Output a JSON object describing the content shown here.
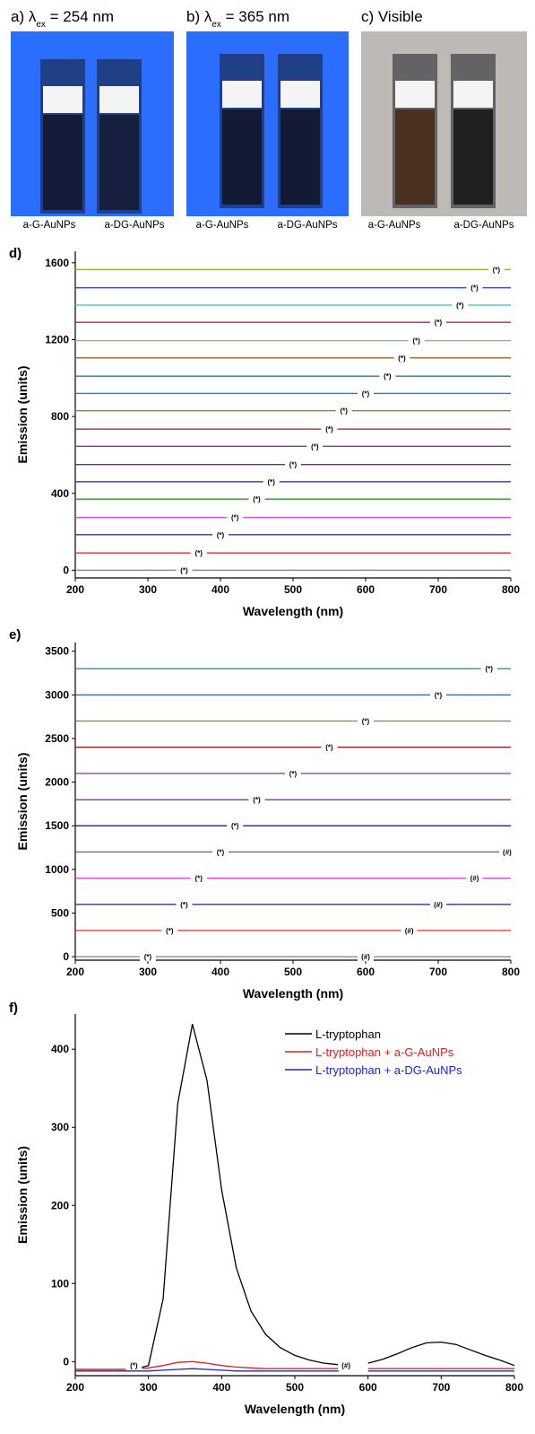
{
  "photos": [
    {
      "label": [
        "a) λ",
        "ex",
        " = 254 nm"
      ],
      "samples": [
        "a-G-AuNPs",
        "a-DG-AuNPs"
      ]
    },
    {
      "label": [
        "b) λ",
        "ex",
        " = 365 nm"
      ],
      "samples": [
        "a-G-AuNPs",
        "a-DG-AuNPs"
      ]
    },
    {
      "label": [
        "c) Visible"
      ],
      "samples": [
        "a-G-AuNPs",
        "a-DG-AuNPs"
      ]
    }
  ],
  "chart_data": [
    {
      "type": "line",
      "panel": "d)",
      "x_label": "Wavelength (nm)",
      "y_label": "Emission (units)",
      "xlim": [
        200,
        800
      ],
      "xticks": [
        200,
        300,
        400,
        500,
        600,
        700,
        800
      ],
      "ylim": [
        -40,
        1660
      ],
      "yticks": [
        0,
        400,
        800,
        1200,
        1600
      ],
      "x": [
        200,
        800
      ],
      "series": [
        {
          "color": "#808080",
          "values": [
            0,
            0
          ]
        },
        {
          "color": "#e03030",
          "values": [
            90,
            90
          ]
        },
        {
          "color": "#2030d0",
          "values": [
            185,
            185
          ]
        },
        {
          "color": "#e040e0",
          "values": [
            275,
            275
          ]
        },
        {
          "color": "#309030",
          "values": [
            370,
            370
          ]
        },
        {
          "color": "#202090",
          "values": [
            460,
            460
          ]
        },
        {
          "color": "#802090",
          "values": [
            550,
            550
          ]
        },
        {
          "color": "#9030a0",
          "values": [
            645,
            645
          ]
        },
        {
          "color": "#902020",
          "values": [
            735,
            735
          ]
        },
        {
          "color": "#809020",
          "values": [
            830,
            830
          ]
        },
        {
          "color": "#4070a0",
          "values": [
            920,
            920
          ]
        },
        {
          "color": "#208080",
          "values": [
            1010,
            1010
          ]
        },
        {
          "color": "#a06020",
          "values": [
            1105,
            1105
          ]
        },
        {
          "color": "#60d060",
          "values": [
            1195,
            1195
          ]
        },
        {
          "color": "#c02050",
          "values": [
            1290,
            1290
          ]
        },
        {
          "color": "#30c0d0",
          "values": [
            1380,
            1380
          ]
        },
        {
          "color": "#3050c0",
          "values": [
            1470,
            1470
          ]
        },
        {
          "color": "#a0b040",
          "values": [
            1565,
            1565
          ]
        }
      ],
      "annotations": [
        {
          "text": "(*)",
          "x": 350,
          "y": 0
        },
        {
          "text": "(*)",
          "x": 370,
          "y": 90
        },
        {
          "text": "(*)",
          "x": 400,
          "y": 185
        },
        {
          "text": "(*)",
          "x": 420,
          "y": 275
        },
        {
          "text": "(*)",
          "x": 450,
          "y": 370
        },
        {
          "text": "(*)",
          "x": 470,
          "y": 460
        },
        {
          "text": "(*)",
          "x": 500,
          "y": 550
        },
        {
          "text": "(*)",
          "x": 530,
          "y": 645
        },
        {
          "text": "(*)",
          "x": 550,
          "y": 735
        },
        {
          "text": "(*)",
          "x": 570,
          "y": 830
        },
        {
          "text": "(*)",
          "x": 600,
          "y": 920
        },
        {
          "text": "(*)",
          "x": 630,
          "y": 1010
        },
        {
          "text": "(*)",
          "x": 650,
          "y": 1105
        },
        {
          "text": "(*)",
          "x": 670,
          "y": 1195
        },
        {
          "text": "(*)",
          "x": 700,
          "y": 1290
        },
        {
          "text": "(*)",
          "x": 730,
          "y": 1380
        },
        {
          "text": "(*)",
          "x": 750,
          "y": 1470
        },
        {
          "text": "(*)",
          "x": 780,
          "y": 1565
        }
      ]
    },
    {
      "type": "line",
      "panel": "e)",
      "x_label": "Wavelength (nm)",
      "y_label": "Emission (units)",
      "xlim": [
        200,
        800
      ],
      "xticks": [
        200,
        300,
        400,
        500,
        600,
        700,
        800
      ],
      "ylim": [
        -40,
        3600
      ],
      "yticks": [
        0,
        500,
        1000,
        1500,
        2000,
        2500,
        3000,
        3500
      ],
      "x": [
        200,
        800
      ],
      "series": [
        {
          "color": "#808080",
          "values": [
            0,
            0
          ]
        },
        {
          "color": "#e03030",
          "values": [
            300,
            300
          ]
        },
        {
          "color": "#2030d0",
          "values": [
            600,
            600
          ]
        },
        {
          "color": "#e040e0",
          "values": [
            900,
            900
          ]
        },
        {
          "color": "#309030",
          "values": [
            1200,
            1200
          ]
        },
        {
          "color": "#202090",
          "values": [
            1500,
            1500
          ]
        },
        {
          "color": "#802090",
          "values": [
            1800,
            1800
          ]
        },
        {
          "color": "#9030a0",
          "values": [
            2100,
            2100
          ]
        },
        {
          "color": "#902020",
          "values": [
            2400,
            2400
          ]
        },
        {
          "color": "#809020",
          "values": [
            2700,
            2700
          ]
        },
        {
          "color": "#3060b0",
          "values": [
            3000,
            3000
          ]
        },
        {
          "color": "#3090a0",
          "values": [
            3300,
            3300
          ]
        }
      ],
      "annotations": [
        {
          "text": "(*)",
          "x": 300,
          "y": 0
        },
        {
          "text": "(#)",
          "x": 600,
          "y": 0
        },
        {
          "text": "(*)",
          "x": 330,
          "y": 300
        },
        {
          "text": "(#)",
          "x": 660,
          "y": 300
        },
        {
          "text": "(*)",
          "x": 350,
          "y": 600
        },
        {
          "text": "(#)",
          "x": 700,
          "y": 600
        },
        {
          "text": "(*)",
          "x": 370,
          "y": 900
        },
        {
          "text": "(#)",
          "x": 750,
          "y": 900
        },
        {
          "text": "(*)",
          "x": 400,
          "y": 1200
        },
        {
          "text": "(#)",
          "x": 795,
          "y": 1200
        },
        {
          "text": "(*)",
          "x": 420,
          "y": 1500
        },
        {
          "text": "(*)",
          "x": 450,
          "y": 1800
        },
        {
          "text": "(*)",
          "x": 500,
          "y": 2100
        },
        {
          "text": "(*)",
          "x": 550,
          "y": 2400
        },
        {
          "text": "(*)",
          "x": 600,
          "y": 2700
        },
        {
          "text": "(*)",
          "x": 700,
          "y": 3000
        },
        {
          "text": "(*)",
          "x": 770,
          "y": 3300
        }
      ]
    },
    {
      "type": "line",
      "panel": "f)",
      "x_label": "Wavelength (nm)",
      "y_label": "Emission (units)",
      "xlim": [
        200,
        800
      ],
      "xticks": [
        200,
        300,
        400,
        500,
        600,
        700,
        800
      ],
      "ylim": [
        -18,
        445
      ],
      "yticks": [
        0,
        100,
        200,
        300,
        400
      ],
      "legend": "upper right",
      "x": [
        200,
        220,
        240,
        260,
        280,
        300,
        320,
        340,
        360,
        380,
        400,
        420,
        440,
        460,
        480,
        500,
        520,
        540,
        560,
        580,
        600,
        620,
        640,
        660,
        680,
        700,
        720,
        740,
        760,
        780,
        800
      ],
      "series": [
        {
          "name": "L-tryptophan",
          "color": "#000000",
          "values": [
            -10,
            -10,
            -10,
            -10,
            -10,
            -5,
            80,
            330,
            432,
            360,
            220,
            120,
            65,
            35,
            18,
            8,
            2,
            -2,
            -4,
            null,
            -2,
            3,
            10,
            18,
            24,
            25,
            22,
            15,
            8,
            2,
            -5
          ]
        },
        {
          "name": "L-tryptophan + a-G-AuNPs",
          "color": "#e02020",
          "values": [
            -10,
            -10,
            -10,
            -10,
            -10,
            -8,
            -5,
            -1,
            0,
            -2,
            -5,
            -7,
            -8,
            -9,
            -9,
            -9,
            -9,
            -9,
            -9,
            null,
            -9,
            -9,
            -9,
            -9,
            -9,
            -9,
            -9,
            -9,
            -9,
            -9,
            -9
          ]
        },
        {
          "name": "L-tryptophan + a-DG-AuNPs",
          "color": "#2020e0",
          "values": [
            -12,
            -12,
            -12,
            -12,
            -12,
            -12,
            -11,
            -10,
            -9,
            -10,
            -11,
            -12,
            -12,
            -12,
            -12,
            -12,
            -12,
            -12,
            -12,
            null,
            -12,
            -12,
            -12,
            -12,
            -12,
            -12,
            -12,
            -12,
            -12,
            -12,
            -12
          ]
        }
      ],
      "annotations": [
        {
          "text": "(*)",
          "x": 280,
          "y": -5
        },
        {
          "text": "(#)",
          "x": 570,
          "y": -5
        }
      ]
    }
  ]
}
